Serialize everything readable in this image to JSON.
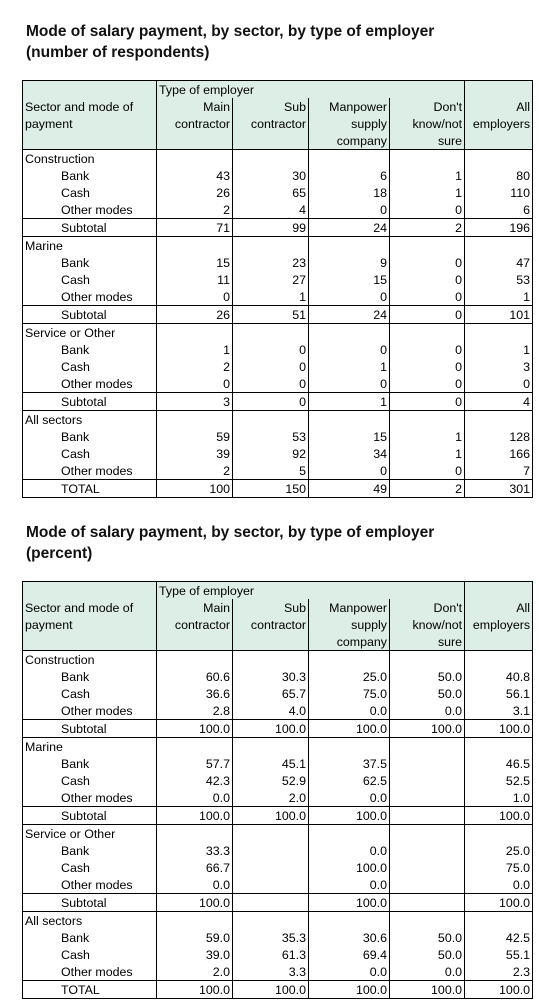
{
  "tables": [
    {
      "title_line1": "Mode of salary payment, by sector, by type of employer",
      "title_line2": "(number of respondents)",
      "header": {
        "group": "Type of employer",
        "rowhead": [
          "Sector and mode of",
          "payment"
        ],
        "cols": [
          [
            "Main",
            "contractor"
          ],
          [
            "Sub",
            "contractor"
          ],
          [
            "Manpower",
            "supply",
            "company"
          ],
          [
            "Don't",
            "know/not",
            "sure"
          ],
          [
            "All",
            "employers"
          ]
        ]
      },
      "sections": [
        {
          "name": "Construction",
          "rows": [
            {
              "label": "Bank",
              "values": [
                "43",
                "30",
                "6",
                "1",
                "80"
              ]
            },
            {
              "label": "Cash",
              "values": [
                "26",
                "65",
                "18",
                "1",
                "110"
              ]
            },
            {
              "label": "Other modes",
              "values": [
                "2",
                "4",
                "0",
                "0",
                "6"
              ]
            },
            {
              "label": "Subtotal",
              "values": [
                "71",
                "99",
                "24",
                "2",
                "196"
              ]
            }
          ]
        },
        {
          "name": "Marine",
          "rows": [
            {
              "label": "Bank",
              "values": [
                "15",
                "23",
                "9",
                "0",
                "47"
              ]
            },
            {
              "label": "Cash",
              "values": [
                "11",
                "27",
                "15",
                "0",
                "53"
              ]
            },
            {
              "label": "Other modes",
              "values": [
                "0",
                "1",
                "0",
                "0",
                "1"
              ]
            },
            {
              "label": "Subtotal",
              "values": [
                "26",
                "51",
                "24",
                "0",
                "101"
              ]
            }
          ]
        },
        {
          "name": "Service or Other",
          "rows": [
            {
              "label": "Bank",
              "values": [
                "1",
                "0",
                "0",
                "0",
                "1"
              ]
            },
            {
              "label": "Cash",
              "values": [
                "2",
                "0",
                "1",
                "0",
                "3"
              ]
            },
            {
              "label": "Other modes",
              "values": [
                "0",
                "0",
                "0",
                "0",
                "0"
              ]
            },
            {
              "label": "Subtotal",
              "values": [
                "3",
                "0",
                "1",
                "0",
                "4"
              ]
            }
          ]
        },
        {
          "name": "All sectors",
          "rows": [
            {
              "label": "Bank",
              "values": [
                "59",
                "53",
                "15",
                "1",
                "128"
              ]
            },
            {
              "label": "Cash",
              "values": [
                "39",
                "92",
                "34",
                "1",
                "166"
              ]
            },
            {
              "label": "Other modes",
              "values": [
                "2",
                "5",
                "0",
                "0",
                "7"
              ]
            },
            {
              "label": "TOTAL",
              "values": [
                "100",
                "150",
                "49",
                "2",
                "301"
              ]
            }
          ]
        }
      ]
    },
    {
      "title_line1": "Mode of salary payment, by sector, by type of employer",
      "title_line2": "(percent)",
      "header": {
        "group": "Type of employer",
        "rowhead": [
          "Sector and mode of",
          "payment"
        ],
        "cols": [
          [
            "Main",
            "contractor"
          ],
          [
            "Sub",
            "contractor"
          ],
          [
            "Manpower",
            "supply",
            "company"
          ],
          [
            "Don't",
            "know/not",
            "sure"
          ],
          [
            "All",
            "employers"
          ]
        ]
      },
      "sections": [
        {
          "name": "Construction",
          "rows": [
            {
              "label": "Bank",
              "values": [
                "60.6",
                "30.3",
                "25.0",
                "50.0",
                "40.8"
              ]
            },
            {
              "label": "Cash",
              "values": [
                "36.6",
                "65.7",
                "75.0",
                "50.0",
                "56.1"
              ]
            },
            {
              "label": "Other modes",
              "values": [
                "2.8",
                "4.0",
                "0.0",
                "0.0",
                "3.1"
              ]
            },
            {
              "label": "Subtotal",
              "values": [
                "100.0",
                "100.0",
                "100.0",
                "100.0",
                "100.0"
              ]
            }
          ]
        },
        {
          "name": "Marine",
          "rows": [
            {
              "label": "Bank",
              "values": [
                "57.7",
                "45.1",
                "37.5",
                "",
                "46.5"
              ]
            },
            {
              "label": "Cash",
              "values": [
                "42.3",
                "52.9",
                "62.5",
                "",
                "52.5"
              ]
            },
            {
              "label": "Other modes",
              "values": [
                "0.0",
                "2.0",
                "0.0",
                "",
                "1.0"
              ]
            },
            {
              "label": "Subtotal",
              "values": [
                "100.0",
                "100.0",
                "100.0",
                "",
                "100.0"
              ]
            }
          ]
        },
        {
          "name": "Service or Other",
          "rows": [
            {
              "label": "Bank",
              "values": [
                "33.3",
                "",
                "0.0",
                "",
                "25.0"
              ]
            },
            {
              "label": "Cash",
              "values": [
                "66.7",
                "",
                "100.0",
                "",
                "75.0"
              ]
            },
            {
              "label": "Other modes",
              "values": [
                "0.0",
                "",
                "0.0",
                "",
                "0.0"
              ]
            },
            {
              "label": "Subtotal",
              "values": [
                "100.0",
                "",
                "100.0",
                "",
                "100.0"
              ]
            }
          ]
        },
        {
          "name": "All sectors",
          "rows": [
            {
              "label": "Bank",
              "values": [
                "59.0",
                "35.3",
                "30.6",
                "50.0",
                "42.5"
              ]
            },
            {
              "label": "Cash",
              "values": [
                "39.0",
                "61.3",
                "69.4",
                "50.0",
                "55.1"
              ]
            },
            {
              "label": "Other modes",
              "values": [
                "2.0",
                "3.3",
                "0.0",
                "0.0",
                "2.3"
              ]
            },
            {
              "label": "TOTAL",
              "values": [
                "100.0",
                "100.0",
                "100.0",
                "100.0",
                "100.0"
              ]
            }
          ]
        }
      ]
    }
  ]
}
